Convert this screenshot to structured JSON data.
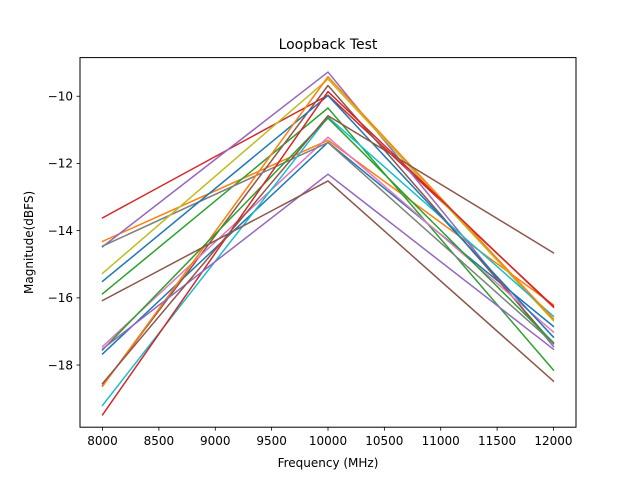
{
  "chart_data": {
    "type": "line",
    "title": "Loopback Test",
    "xlabel": "Frequency (MHz)",
    "ylabel": "Magnitude(dBFS)",
    "x": [
      8000,
      10000,
      12000
    ],
    "xlim": [
      7800,
      12200
    ],
    "ylim": [
      -19.85,
      -8.85
    ],
    "xticks": [
      8000,
      8500,
      9000,
      9500,
      10000,
      10500,
      11000,
      11500,
      12000
    ],
    "yticks": [
      -18,
      -16,
      -14,
      -12,
      -10
    ],
    "grid": false,
    "series": [
      {
        "color": "#1f77b4",
        "values": [
          -17.67,
          -11.37,
          -16.85
        ]
      },
      {
        "color": "#ff7f0e",
        "values": [
          -14.32,
          -11.31,
          -16.21
        ]
      },
      {
        "color": "#2ca02c",
        "values": [
          -15.88,
          -10.35,
          -18.15
        ]
      },
      {
        "color": "#d62728",
        "values": [
          -13.62,
          -9.97,
          -16.25
        ]
      },
      {
        "color": "#9467bd",
        "values": [
          -14.48,
          -9.28,
          -17.45
        ]
      },
      {
        "color": "#8c564b",
        "values": [
          -18.61,
          -9.68,
          -17.37
        ]
      },
      {
        "color": "#e377c2",
        "values": [
          -17.45,
          -11.22,
          -17.02
        ]
      },
      {
        "color": "#7f7f7f",
        "values": [
          -14.46,
          -11.38,
          -17.35
        ]
      },
      {
        "color": "#bcbd22",
        "values": [
          -15.27,
          -9.49,
          -16.68
        ]
      },
      {
        "color": "#17becf",
        "values": [
          -19.2,
          -10.62,
          -16.55
        ]
      },
      {
        "color": "#1f77b4",
        "values": [
          -15.51,
          -9.98,
          -17.17
        ]
      },
      {
        "color": "#ff7f0e",
        "values": [
          -18.63,
          -9.42,
          -16.63
        ]
      },
      {
        "color": "#2ca02c",
        "values": [
          -17.55,
          -10.65,
          -17.33
        ]
      },
      {
        "color": "#d62728",
        "values": [
          -19.48,
          -9.86,
          -16.28
        ]
      },
      {
        "color": "#9467bd",
        "values": [
          -17.52,
          -12.32,
          -17.53
        ]
      },
      {
        "color": "#8c564b",
        "values": [
          -16.08,
          -12.52,
          -18.48
        ]
      },
      {
        "color": "#8c564b",
        "values": [
          -18.55,
          -10.58,
          -14.66
        ]
      }
    ]
  }
}
